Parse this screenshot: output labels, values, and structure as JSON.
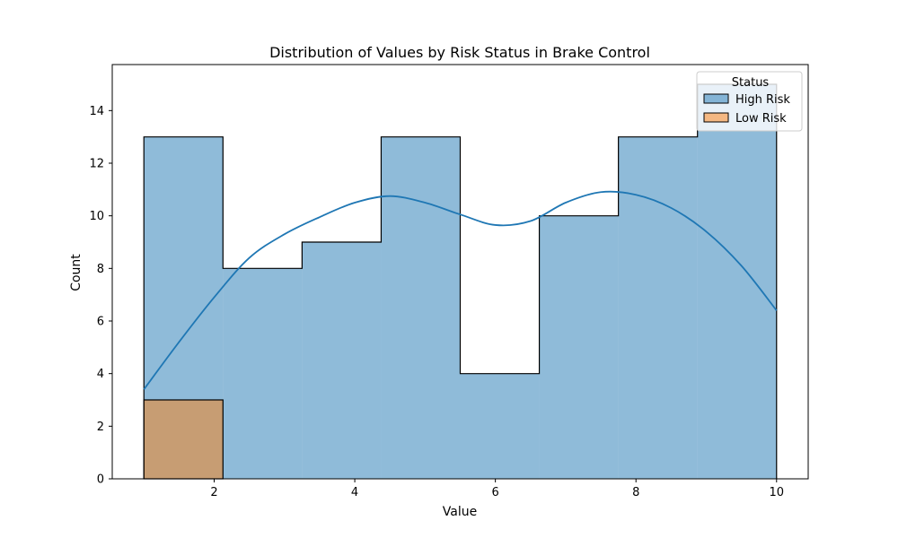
{
  "chart_data": {
    "type": "histogram",
    "title": "Distribution of Values by Risk Status in Brake Control",
    "xlabel": "Value",
    "ylabel": "Count",
    "xlim": [
      0.55,
      10.45
    ],
    "ylim": [
      0,
      15.75
    ],
    "x_ticks": [
      2,
      4,
      6,
      8,
      10
    ],
    "y_ticks": [
      0,
      2,
      4,
      6,
      8,
      10,
      12,
      14
    ],
    "bin_edges": [
      1.0,
      2.125,
      3.25,
      4.375,
      5.5,
      6.625,
      7.75,
      8.875,
      10.0
    ],
    "series": [
      {
        "name": "High Risk",
        "color": "#1f77b4",
        "values": [
          13,
          8,
          9,
          13,
          4,
          10,
          13,
          15
        ]
      },
      {
        "name": "Low Risk",
        "color": "#ff7f0e",
        "values": [
          3,
          0,
          0,
          0,
          0,
          0,
          0,
          0
        ]
      }
    ],
    "kde": {
      "series": "High Risk",
      "x": [
        1.0,
        1.5,
        2.0,
        2.5,
        3.0,
        3.5,
        4.0,
        4.5,
        5.0,
        5.5,
        6.0,
        6.5,
        7.0,
        7.5,
        8.0,
        8.5,
        9.0,
        9.5,
        10.0
      ],
      "y": [
        3.4,
        5.2,
        6.9,
        8.4,
        9.3,
        9.95,
        10.5,
        10.75,
        10.5,
        10.05,
        9.65,
        9.8,
        10.5,
        10.9,
        10.8,
        10.3,
        9.4,
        8.1,
        6.4
      ]
    },
    "legend": {
      "title": "Status",
      "placement": "top-right",
      "entries": [
        "High Risk",
        "Low Risk"
      ]
    },
    "grid": false
  }
}
